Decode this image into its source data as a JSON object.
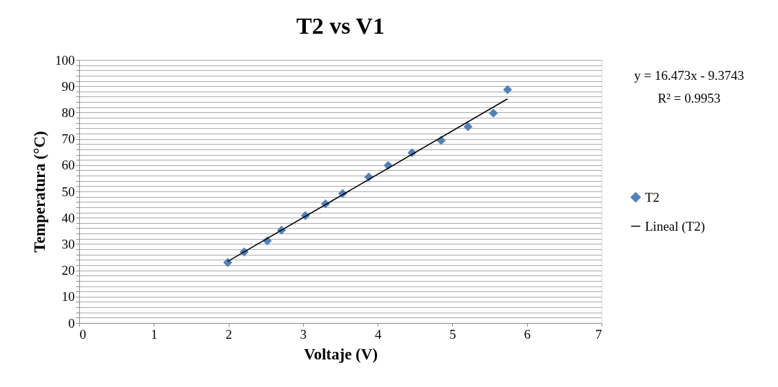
{
  "chart_data": {
    "type": "scatter",
    "title": "T2 vs V1",
    "xlabel": "Voltaje (V)",
    "ylabel": "Temperatura (°C)",
    "xlim": [
      0,
      7
    ],
    "xticks": [
      0,
      1,
      2,
      3,
      4,
      5,
      6,
      7
    ],
    "ylim": [
      0,
      100
    ],
    "yticks": [
      0,
      {
        "value": 2,
        "label": null
      },
      {
        "value": 4,
        "label": null
      },
      {
        "value": 6,
        "label": null
      },
      {
        "value": 8,
        "label": null
      },
      10,
      {
        "value": 12,
        "label": null
      },
      {
        "value": 14,
        "label": null
      },
      {
        "value": 16,
        "label": null
      },
      {
        "value": 18,
        "label": null
      },
      20,
      {
        "value": 22,
        "label": null
      },
      {
        "value": 24,
        "label": null
      },
      {
        "value": 26,
        "label": null
      },
      {
        "value": 28,
        "label": null
      },
      30,
      {
        "value": 32,
        "label": null
      },
      {
        "value": 34,
        "label": null
      },
      {
        "value": 36,
        "label": null
      },
      {
        "value": 38,
        "label": null
      },
      40,
      {
        "value": 42,
        "label": null
      },
      {
        "value": 44,
        "label": null
      },
      {
        "value": 46,
        "label": null
      },
      {
        "value": 48,
        "label": null
      },
      50,
      {
        "value": 52,
        "label": null
      },
      {
        "value": 54,
        "label": null
      },
      {
        "value": 56,
        "label": null
      },
      {
        "value": 58,
        "label": null
      },
      60,
      {
        "value": 62,
        "label": null
      },
      {
        "value": 64,
        "label": null
      },
      {
        "value": 66,
        "label": null
      },
      {
        "value": 68,
        "label": null
      },
      70,
      {
        "value": 72,
        "label": null
      },
      {
        "value": 74,
        "label": null
      },
      {
        "value": 76,
        "label": null
      },
      {
        "value": 78,
        "label": null
      },
      80,
      {
        "value": 82,
        "label": null
      },
      {
        "value": 84,
        "label": null
      },
      {
        "value": 86,
        "label": null
      },
      {
        "value": 88,
        "label": null
      },
      90,
      {
        "value": 92,
        "label": null
      },
      {
        "value": 94,
        "label": null
      },
      {
        "value": 96,
        "label": null
      },
      {
        "value": 98,
        "label": null
      },
      100
    ],
    "grid": "y",
    "legend": "right",
    "annotations": [
      "y = 16.473x - 9.3743",
      "R² = 0.9953"
    ],
    "series": [
      {
        "name": "T2",
        "marker": "diamond",
        "color": "#4f81bd",
        "x": [
          1.99,
          2.21,
          2.52,
          2.71,
          3.03,
          3.3,
          3.53,
          3.88,
          4.14,
          4.46,
          4.85,
          5.21,
          5.55,
          5.74
        ],
        "values": [
          23.0,
          27.0,
          31.2,
          35.3,
          40.8,
          45.3,
          49.2,
          55.5,
          59.9,
          64.7,
          69.4,
          74.6,
          79.8,
          88.7
        ]
      },
      {
        "name": "Lineal (T2)",
        "type": "line",
        "line_style": "solid",
        "color": "#000000",
        "x": [
          1.99,
          5.74
        ],
        "values": [
          23.4,
          85.2
        ]
      }
    ]
  }
}
